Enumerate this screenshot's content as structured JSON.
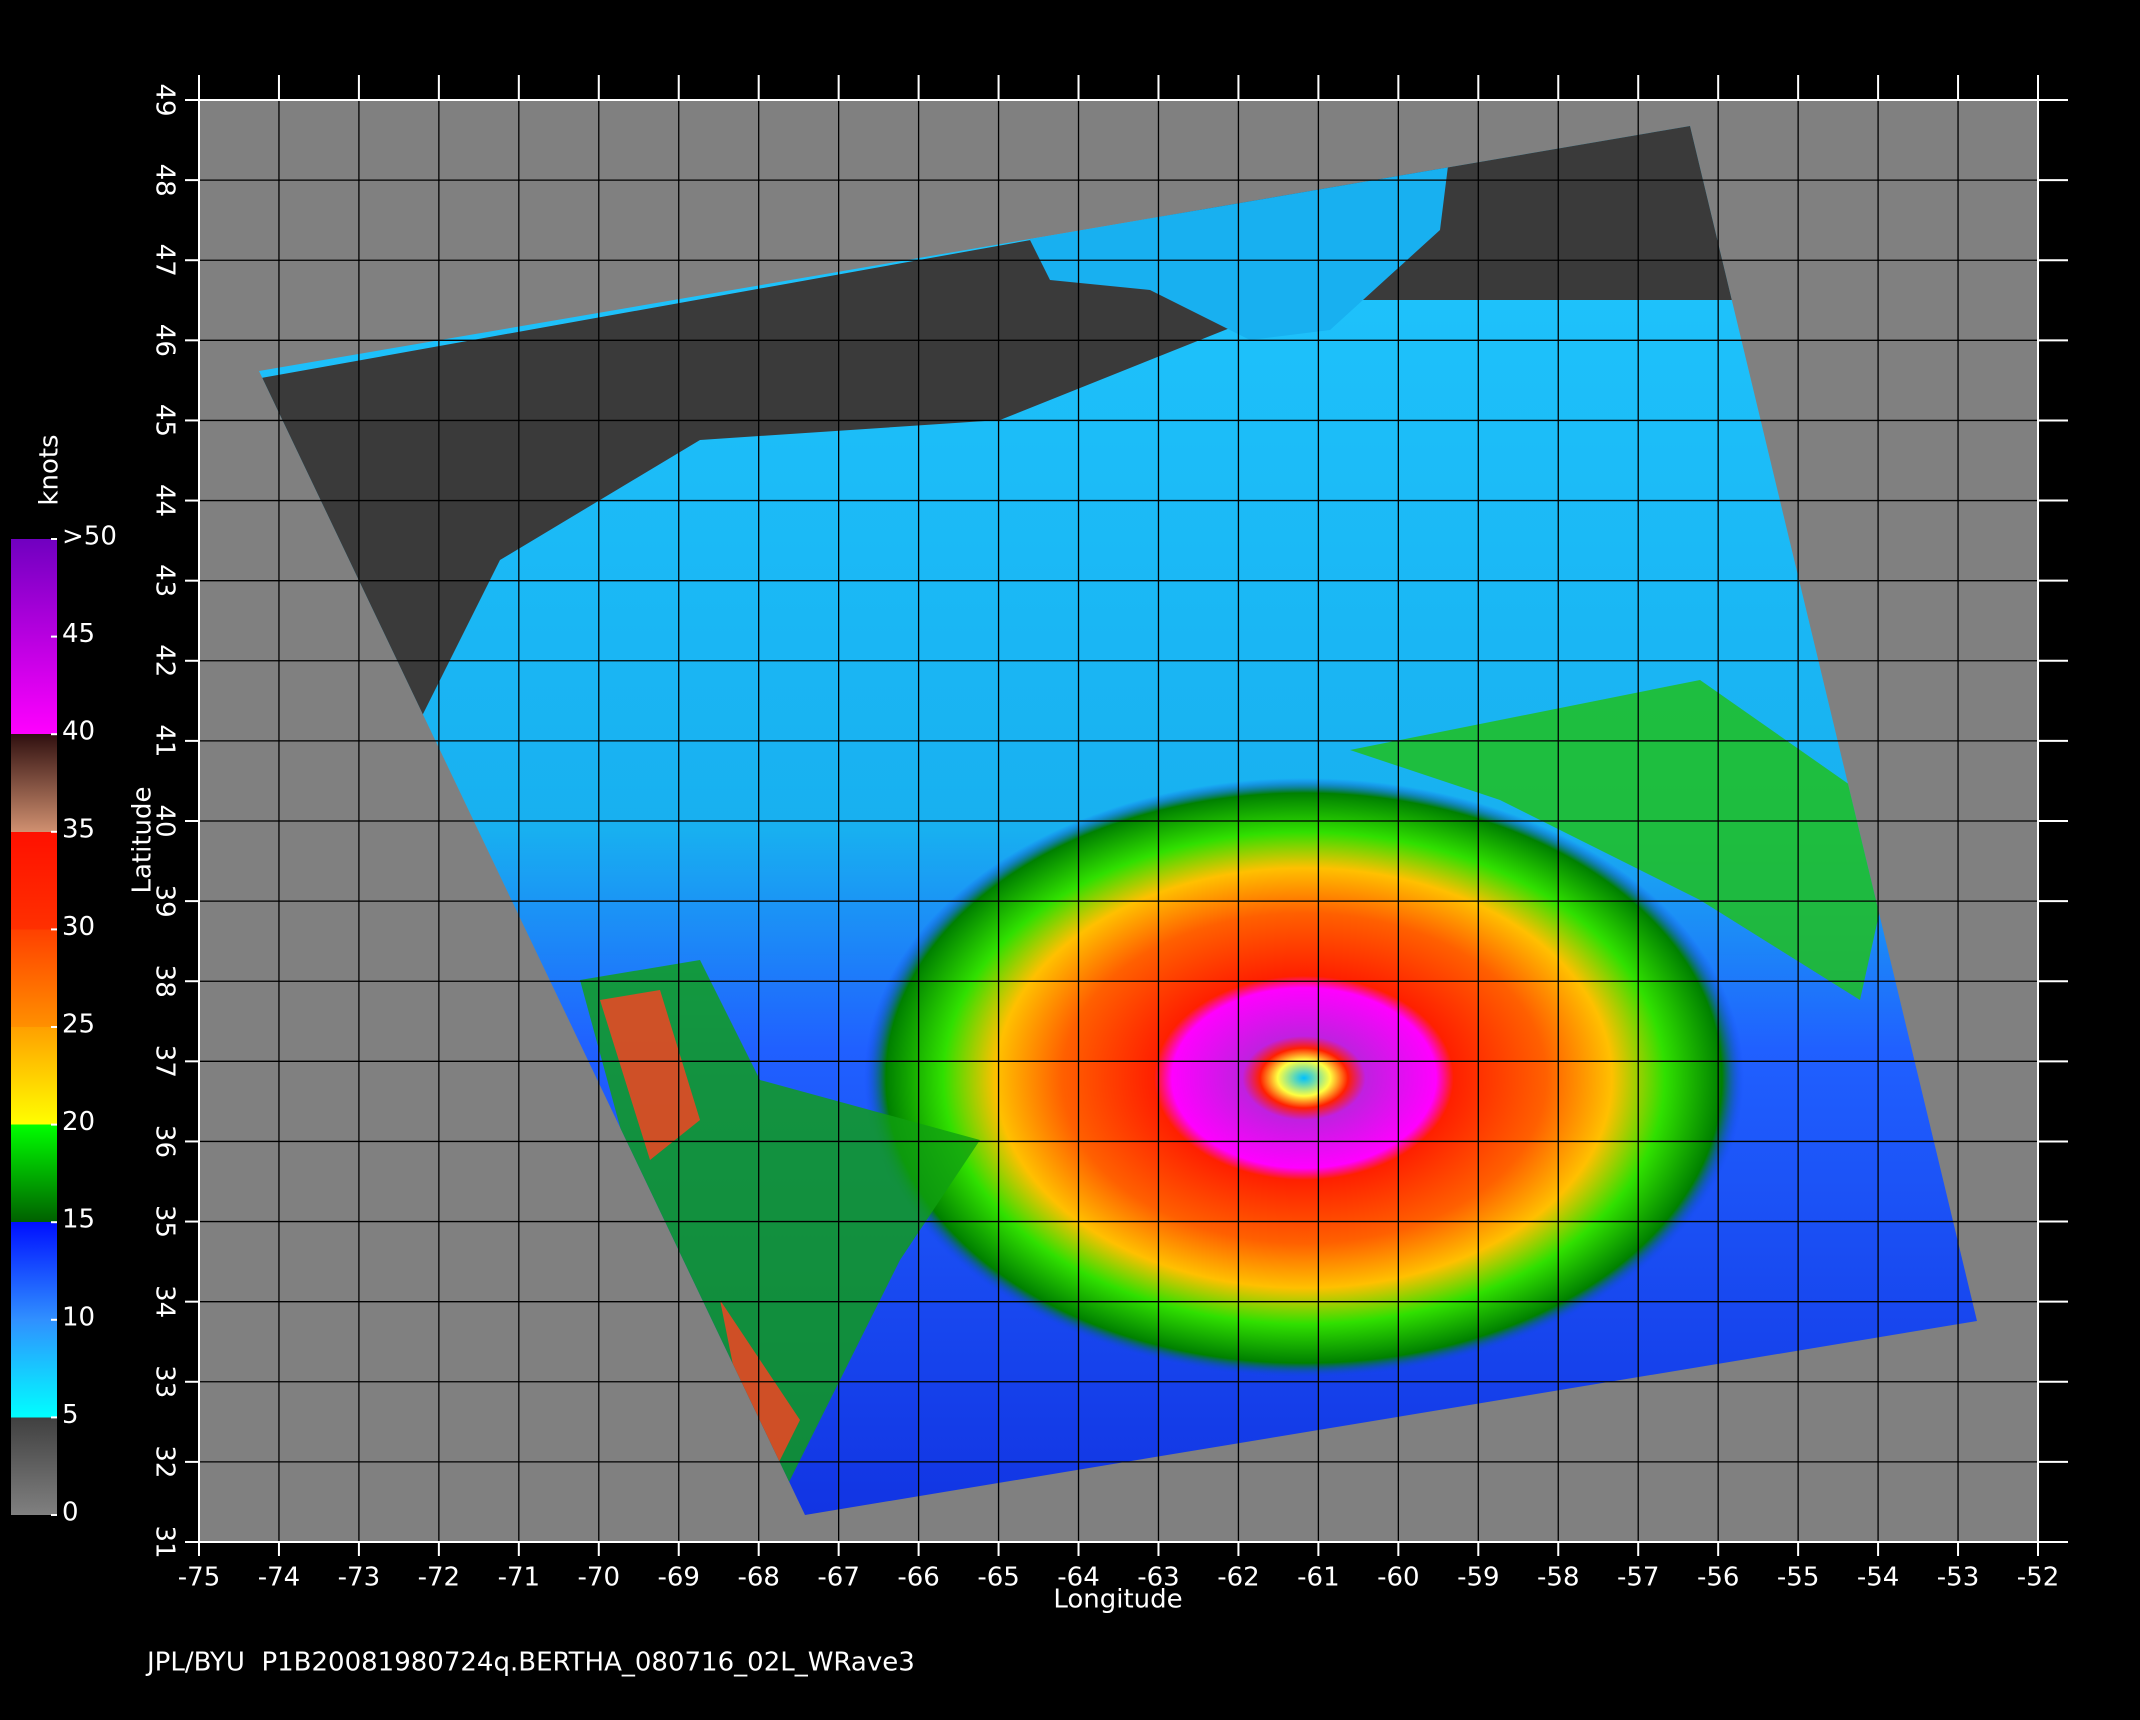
{
  "chart_data": {
    "type": "map",
    "xlabel": "Longitude",
    "ylabel": "Latitude",
    "xlim": [
      -75,
      -52
    ],
    "ylim": [
      31,
      49
    ],
    "xticks": [
      -75,
      -74,
      -73,
      -72,
      -71,
      -70,
      -69,
      -68,
      -67,
      -66,
      -65,
      -64,
      -63,
      -62,
      -61,
      -60,
      -59,
      -58,
      -57,
      -56,
      -55,
      -54,
      -53,
      -52
    ],
    "yticks": [
      31,
      32,
      33,
      34,
      35,
      36,
      37,
      38,
      39,
      40,
      41,
      42,
      43,
      44,
      45,
      46,
      47,
      48,
      49
    ],
    "grid": true,
    "colorbar": {
      "label": "knots",
      "lim": [
        0,
        50
      ],
      "ticks": [
        0,
        5,
        10,
        15,
        20,
        25,
        30,
        35,
        40,
        45,
        {
          "value": 50,
          "label": ">50"
        }
      ]
    }
  },
  "footer": "JPL/BYU  P1B20081980724q.BERTHA_080716_02L_WRave3"
}
